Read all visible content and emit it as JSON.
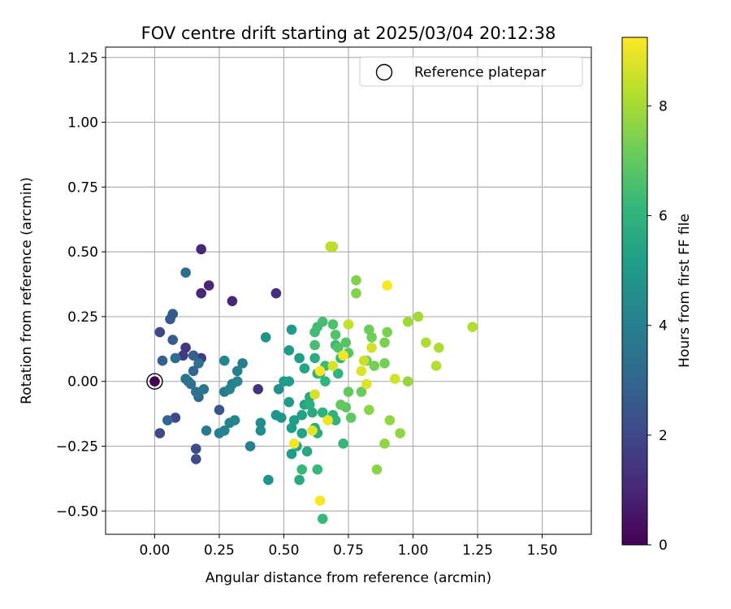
{
  "chart_data": {
    "type": "scatter",
    "title": "FOV centre drift starting at 2025/03/04 20:12:38",
    "xlabel": "Angular distance from reference (arcmin)",
    "ylabel": "Rotation from reference (arcmin)",
    "xlim": [
      -0.19,
      1.69
    ],
    "ylim": [
      -0.59,
      1.29
    ],
    "xticks": [
      0.0,
      0.25,
      0.5,
      0.75,
      1.0,
      1.25,
      1.5
    ],
    "xtick_labels": [
      "0.00",
      "0.25",
      "0.50",
      "0.75",
      "1.00",
      "1.25",
      "1.50"
    ],
    "yticks": [
      -0.5,
      -0.25,
      0.0,
      0.25,
      0.5,
      0.75,
      1.0,
      1.25
    ],
    "ytick_labels": [
      "−0.50",
      "−0.25",
      "0.00",
      "0.25",
      "0.50",
      "0.75",
      "1.00",
      "1.25"
    ],
    "grid": true,
    "legend": {
      "position": "top-right",
      "entries": [
        {
          "label": "Reference platepar",
          "marker": "open-circle"
        }
      ]
    },
    "reference_point": {
      "x": 0.0,
      "y": 0.0
    },
    "colorbar": {
      "label": "Hours from first FF file",
      "colormap": "viridis",
      "range": [
        0,
        9.25
      ],
      "ticks": [
        0,
        2,
        4,
        6,
        8
      ],
      "tick_labels": [
        "0",
        "2",
        "4",
        "6",
        "8"
      ]
    },
    "points": [
      {
        "x": 0.18,
        "y": 0.51,
        "h": 1.0
      },
      {
        "x": 0.21,
        "y": 0.37,
        "h": 1.0
      },
      {
        "x": 0.18,
        "y": 0.34,
        "h": 1.0
      },
      {
        "x": 0.3,
        "y": 0.31,
        "h": 1.0
      },
      {
        "x": 0.47,
        "y": 0.34,
        "h": 1.2
      },
      {
        "x": 0.4,
        "y": -0.03,
        "h": 1.3
      },
      {
        "x": 0.12,
        "y": 0.13,
        "h": 1.5
      },
      {
        "x": 0.11,
        "y": 0.1,
        "h": 1.6
      },
      {
        "x": 0.18,
        "y": 0.09,
        "h": 1.6
      },
      {
        "x": 0.08,
        "y": -0.14,
        "h": 2.0
      },
      {
        "x": 0.02,
        "y": -0.2,
        "h": 2.0
      },
      {
        "x": 0.02,
        "y": 0.19,
        "h": 2.1
      },
      {
        "x": 0.16,
        "y": -0.3,
        "h": 2.2
      },
      {
        "x": 0.16,
        "y": -0.26,
        "h": 2.2
      },
      {
        "x": 0.25,
        "y": -0.11,
        "h": 2.5
      },
      {
        "x": 0.07,
        "y": 0.26,
        "h": 2.6
      },
      {
        "x": 0.06,
        "y": 0.24,
        "h": 2.6
      },
      {
        "x": 0.07,
        "y": 0.16,
        "h": 2.7
      },
      {
        "x": 0.03,
        "y": 0.08,
        "h": 2.8
      },
      {
        "x": 0.15,
        "y": 0.1,
        "h": 2.8
      },
      {
        "x": 0.13,
        "y": 0.0,
        "h": 3.0
      },
      {
        "x": 0.15,
        "y": 0.04,
        "h": 3.0
      },
      {
        "x": 0.05,
        "y": -0.15,
        "h": 3.0
      },
      {
        "x": 0.17,
        "y": -0.06,
        "h": 3.2
      },
      {
        "x": 0.12,
        "y": 0.42,
        "h": 3.3
      },
      {
        "x": 0.08,
        "y": 0.09,
        "h": 3.3
      },
      {
        "x": 0.14,
        "y": -0.01,
        "h": 3.4
      },
      {
        "x": 0.17,
        "y": 0.07,
        "h": 3.4
      },
      {
        "x": 0.16,
        "y": -0.04,
        "h": 3.5
      },
      {
        "x": 0.12,
        "y": 0.01,
        "h": 3.5
      },
      {
        "x": 0.19,
        "y": -0.03,
        "h": 3.6
      },
      {
        "x": 0.2,
        "y": -0.19,
        "h": 3.8
      },
      {
        "x": 0.27,
        "y": -0.04,
        "h": 3.8
      },
      {
        "x": 0.37,
        "y": -0.25,
        "h": 3.9
      },
      {
        "x": 0.34,
        "y": 0.07,
        "h": 4.0
      },
      {
        "x": 0.32,
        "y": 0.04,
        "h": 4.0
      },
      {
        "x": 0.3,
        "y": -0.01,
        "h": 4.0
      },
      {
        "x": 0.29,
        "y": -0.03,
        "h": 4.1
      },
      {
        "x": 0.27,
        "y": -0.19,
        "h": 4.1
      },
      {
        "x": 0.25,
        "y": -0.2,
        "h": 4.1
      },
      {
        "x": 0.29,
        "y": -0.16,
        "h": 4.2
      },
      {
        "x": 0.31,
        "y": -0.15,
        "h": 4.2
      },
      {
        "x": 0.27,
        "y": 0.08,
        "h": 4.3
      },
      {
        "x": 0.32,
        "y": 0.0,
        "h": 4.3
      },
      {
        "x": 0.41,
        "y": -0.16,
        "h": 4.5
      },
      {
        "x": 0.41,
        "y": -0.19,
        "h": 4.5
      },
      {
        "x": 0.48,
        "y": -0.03,
        "h": 4.6
      },
      {
        "x": 0.43,
        "y": 0.17,
        "h": 4.7
      },
      {
        "x": 0.44,
        "y": -0.38,
        "h": 4.8
      },
      {
        "x": 0.47,
        "y": -0.13,
        "h": 4.8
      },
      {
        "x": 0.49,
        "y": -0.14,
        "h": 4.8
      },
      {
        "x": 0.52,
        "y": 0.12,
        "h": 5.0
      },
      {
        "x": 0.52,
        "y": -0.08,
        "h": 5.0
      },
      {
        "x": 0.53,
        "y": 0.2,
        "h": 5.0
      },
      {
        "x": 0.5,
        "y": 0.0,
        "h": 5.0
      },
      {
        "x": 0.52,
        "y": 0.0,
        "h": 5.1
      },
      {
        "x": 0.53,
        "y": -0.18,
        "h": 5.1
      },
      {
        "x": 0.53,
        "y": -0.28,
        "h": 5.1
      },
      {
        "x": 0.54,
        "y": -0.15,
        "h": 5.2
      },
      {
        "x": 0.56,
        "y": 0.09,
        "h": 5.2
      },
      {
        "x": 0.57,
        "y": -0.13,
        "h": 5.3
      },
      {
        "x": 0.57,
        "y": -0.2,
        "h": 5.3
      },
      {
        "x": 0.55,
        "y": -0.25,
        "h": 5.3
      },
      {
        "x": 0.58,
        "y": 0.05,
        "h": 5.4
      },
      {
        "x": 0.58,
        "y": -0.09,
        "h": 5.4
      },
      {
        "x": 0.59,
        "y": -0.27,
        "h": 5.5
      },
      {
        "x": 0.56,
        "y": -0.38,
        "h": 5.6
      },
      {
        "x": 0.6,
        "y": -0.06,
        "h": 5.6
      },
      {
        "x": 0.61,
        "y": -0.12,
        "h": 5.6
      },
      {
        "x": 0.62,
        "y": -0.18,
        "h": 5.7
      },
      {
        "x": 0.62,
        "y": 0.09,
        "h": 5.7
      },
      {
        "x": 0.63,
        "y": 0.03,
        "h": 5.8
      },
      {
        "x": 0.63,
        "y": -0.2,
        "h": 5.8
      },
      {
        "x": 0.6,
        "y": -0.09,
        "h": 5.8
      },
      {
        "x": 0.65,
        "y": -0.12,
        "h": 5.9
      },
      {
        "x": 0.66,
        "y": 0.0,
        "h": 6.0
      },
      {
        "x": 0.7,
        "y": -0.15,
        "h": 6.0
      },
      {
        "x": 0.69,
        "y": -0.13,
        "h": 6.0
      },
      {
        "x": 0.71,
        "y": 0.03,
        "h": 6.0
      },
      {
        "x": 0.72,
        "y": 0.09,
        "h": 6.1
      },
      {
        "x": 0.73,
        "y": -0.24,
        "h": 6.1
      },
      {
        "x": 0.65,
        "y": -0.53,
        "h": 6.2
      },
      {
        "x": 0.63,
        "y": -0.34,
        "h": 6.2
      },
      {
        "x": 0.57,
        "y": -0.34,
        "h": 6.2
      },
      {
        "x": 0.64,
        "y": 0.03,
        "h": 6.2
      },
      {
        "x": 0.7,
        "y": 0.14,
        "h": 6.3
      },
      {
        "x": 0.66,
        "y": 0.06,
        "h": 6.3
      },
      {
        "x": 0.62,
        "y": 0.19,
        "h": 6.4
      },
      {
        "x": 0.63,
        "y": 0.21,
        "h": 6.4
      },
      {
        "x": 0.65,
        "y": 0.23,
        "h": 6.5
      },
      {
        "x": 0.62,
        "y": 0.14,
        "h": 6.5
      },
      {
        "x": 0.69,
        "y": 0.22,
        "h": 6.6
      },
      {
        "x": 0.7,
        "y": 0.18,
        "h": 6.7
      },
      {
        "x": 0.71,
        "y": 0.13,
        "h": 6.7
      },
      {
        "x": 0.74,
        "y": 0.15,
        "h": 6.8
      },
      {
        "x": 0.75,
        "y": 0.11,
        "h": 6.8
      },
      {
        "x": 0.74,
        "y": -0.1,
        "h": 6.9
      },
      {
        "x": 0.76,
        "y": -0.14,
        "h": 6.9
      },
      {
        "x": 0.72,
        "y": -0.09,
        "h": 7.0
      },
      {
        "x": 0.75,
        "y": -0.04,
        "h": 7.0
      },
      {
        "x": 0.8,
        "y": -0.04,
        "h": 7.1
      },
      {
        "x": 0.82,
        "y": 0.08,
        "h": 7.1
      },
      {
        "x": 0.84,
        "y": 0.17,
        "h": 7.2
      },
      {
        "x": 0.83,
        "y": 0.2,
        "h": 7.2
      },
      {
        "x": 0.85,
        "y": 0.06,
        "h": 7.3
      },
      {
        "x": 0.89,
        "y": 0.07,
        "h": 7.3
      },
      {
        "x": 0.9,
        "y": 0.19,
        "h": 7.4
      },
      {
        "x": 0.89,
        "y": 0.15,
        "h": 7.4
      },
      {
        "x": 0.78,
        "y": 0.39,
        "h": 7.5
      },
      {
        "x": 0.78,
        "y": 0.34,
        "h": 7.5
      },
      {
        "x": 0.83,
        "y": -0.11,
        "h": 7.6
      },
      {
        "x": 0.86,
        "y": -0.34,
        "h": 7.6
      },
      {
        "x": 0.89,
        "y": -0.24,
        "h": 7.7
      },
      {
        "x": 0.91,
        "y": -0.15,
        "h": 7.7
      },
      {
        "x": 0.95,
        "y": -0.2,
        "h": 7.7
      },
      {
        "x": 0.98,
        "y": 0.0,
        "h": 7.8
      },
      {
        "x": 0.98,
        "y": 0.23,
        "h": 7.9
      },
      {
        "x": 1.02,
        "y": 0.25,
        "h": 8.0
      },
      {
        "x": 1.05,
        "y": 0.15,
        "h": 8.1
      },
      {
        "x": 1.1,
        "y": 0.13,
        "h": 8.1
      },
      {
        "x": 1.09,
        "y": 0.06,
        "h": 8.2
      },
      {
        "x": 1.23,
        "y": 0.21,
        "h": 8.2
      },
      {
        "x": 0.68,
        "y": 0.52,
        "h": 8.3
      },
      {
        "x": 0.69,
        "y": 0.52,
        "h": 8.3
      },
      {
        "x": 0.75,
        "y": 0.22,
        "h": 8.4
      },
      {
        "x": 0.81,
        "y": 0.08,
        "h": 8.5
      },
      {
        "x": 0.84,
        "y": 0.13,
        "h": 8.6
      },
      {
        "x": 0.93,
        "y": 0.01,
        "h": 8.6
      },
      {
        "x": 0.62,
        "y": -0.05,
        "h": 8.7
      },
      {
        "x": 0.69,
        "y": 0.06,
        "h": 8.7
      },
      {
        "x": 0.8,
        "y": 0.04,
        "h": 8.8
      },
      {
        "x": 0.82,
        "y": -0.01,
        "h": 8.8
      },
      {
        "x": 0.61,
        "y": -0.19,
        "h": 8.9
      },
      {
        "x": 0.67,
        "y": -0.15,
        "h": 9.0
      },
      {
        "x": 0.54,
        "y": -0.24,
        "h": 9.1
      },
      {
        "x": 0.73,
        "y": 0.1,
        "h": 9.1
      },
      {
        "x": 0.9,
        "y": 0.37,
        "h": 9.2
      },
      {
        "x": 0.64,
        "y": -0.46,
        "h": 9.2
      },
      {
        "x": 0.64,
        "y": 0.04,
        "h": 9.2
      }
    ]
  }
}
